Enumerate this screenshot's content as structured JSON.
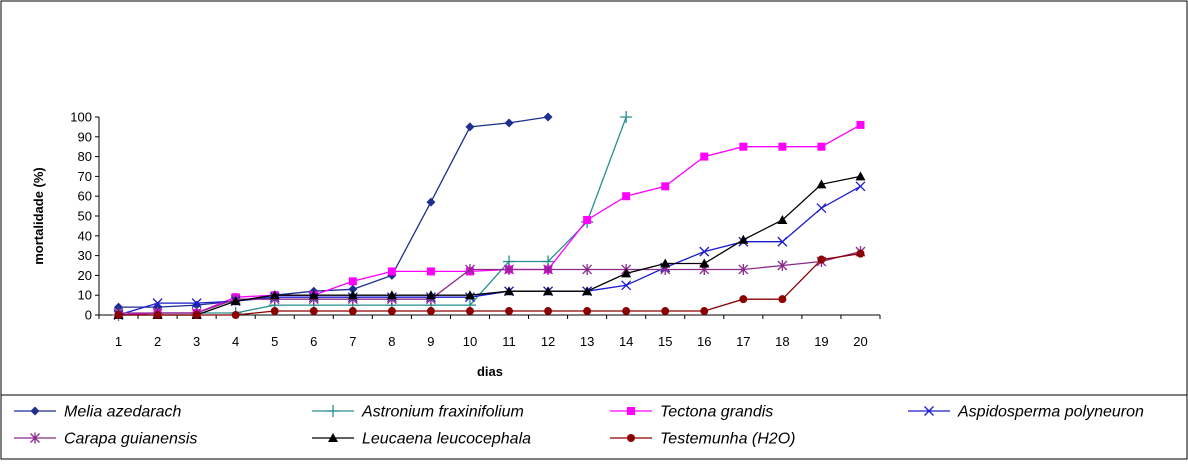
{
  "chart_data": {
    "type": "line",
    "title": "",
    "xlabel": "dias",
    "ylabel": "mortalidade (%)",
    "x": [
      1,
      2,
      3,
      4,
      5,
      6,
      7,
      8,
      9,
      10,
      11,
      12,
      13,
      14,
      15,
      16,
      17,
      18,
      19,
      20
    ],
    "xlim": [
      1,
      20
    ],
    "ylim": [
      0,
      100
    ],
    "yticks": [
      0,
      10,
      20,
      30,
      40,
      50,
      60,
      70,
      80,
      90,
      100
    ],
    "grid": false,
    "legend_position": "bottom",
    "series": [
      {
        "name": "Melia azedarach",
        "color": "#1f2f8f",
        "marker": "diamond",
        "values": [
          4,
          4,
          5,
          7,
          10,
          12,
          13,
          20,
          57,
          95,
          97,
          100,
          null,
          null,
          null,
          null,
          null,
          null,
          null,
          null
        ]
      },
      {
        "name": "Astronium fraxinifolium",
        "color": "#2a8f8f",
        "marker": "plus",
        "values": [
          0,
          1,
          1,
          1,
          5,
          5,
          5,
          5,
          5,
          5,
          27,
          27,
          47,
          100,
          null,
          null,
          null,
          null,
          null,
          null
        ]
      },
      {
        "name": "Tectona grandis",
        "color": "#ff00ff",
        "marker": "square",
        "values": [
          0,
          1,
          1,
          9,
          10,
          10,
          17,
          22,
          22,
          22,
          23,
          23,
          48,
          60,
          65,
          80,
          85,
          85,
          85,
          96
        ]
      },
      {
        "name": "Aspidosperma polyneuron",
        "color": "#1a1ad0",
        "marker": "x",
        "values": [
          0,
          6,
          6,
          7,
          9,
          9,
          9,
          9,
          9,
          9,
          12,
          12,
          12,
          15,
          24,
          32,
          37,
          37,
          54,
          65
        ]
      },
      {
        "name": "Carapa guianensis",
        "color": "#8b2a8b",
        "marker": "asterisk",
        "values": [
          1,
          1,
          1,
          8,
          8,
          8,
          8,
          8,
          8,
          23,
          23,
          23,
          23,
          23,
          23,
          23,
          23,
          25,
          27,
          32
        ]
      },
      {
        "name": "Leucaena leucocephala",
        "color": "#000000",
        "marker": "triangle",
        "values": [
          0,
          0,
          0,
          7,
          10,
          10,
          10,
          10,
          10,
          10,
          12,
          12,
          12,
          21,
          26,
          26,
          38,
          48,
          66,
          70
        ]
      },
      {
        "name": "Testemunha (H2O)",
        "color": "#8b0000",
        "marker": "circle",
        "values": [
          0,
          0,
          0,
          0,
          2,
          2,
          2,
          2,
          2,
          2,
          2,
          2,
          2,
          2,
          2,
          2,
          8,
          8,
          28,
          31
        ]
      }
    ]
  }
}
